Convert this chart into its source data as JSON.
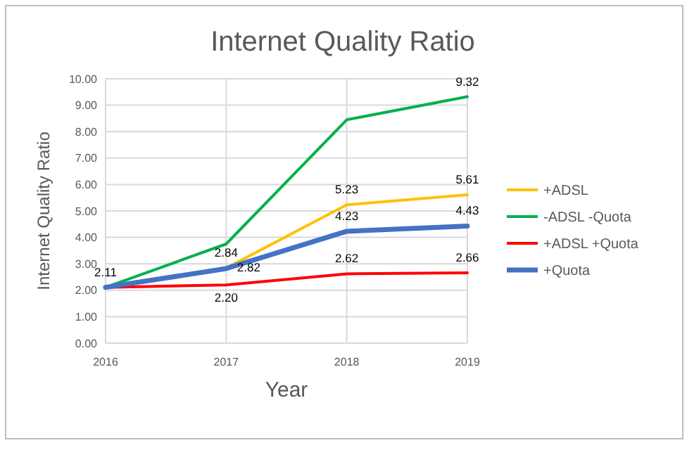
{
  "chart_data": {
    "type": "line",
    "title": "Internet Quality Ratio",
    "xlabel": "Year",
    "ylabel": "Internet Quality Ratio",
    "x": [
      2016,
      2017,
      2018,
      2019
    ],
    "xlim": [
      2016,
      2019
    ],
    "xticks": [
      2016,
      2017,
      2018,
      2019
    ],
    "ylim": [
      0,
      10
    ],
    "yticks": [
      {
        "value": 0,
        "label": "0.00"
      },
      {
        "value": 1,
        "label": "1.00"
      },
      {
        "value": 2,
        "label": "2.00"
      },
      {
        "value": 3,
        "label": "3.00"
      },
      {
        "value": 4,
        "label": "4.00"
      },
      {
        "value": 5,
        "label": "5.00"
      },
      {
        "value": 6,
        "label": "6.00"
      },
      {
        "value": 7,
        "label": "7.00"
      },
      {
        "value": 8,
        "label": "8.00"
      },
      {
        "value": 9,
        "label": "9.00"
      },
      {
        "value": 10,
        "label": "10.00"
      }
    ],
    "grid": true,
    "legend": "right",
    "marker": "none",
    "series": [
      {
        "name": "+ADSL",
        "color": "#ffc000",
        "values": [
          2.11,
          2.84,
          5.23,
          5.61
        ],
        "value_labels": [
          null,
          "2.84",
          "5.23",
          "5.61"
        ]
      },
      {
        "name": "-ADSL -Quota",
        "color": "#00b050",
        "values": [
          2.11,
          3.75,
          8.45,
          9.32
        ],
        "value_labels": [
          null,
          null,
          null,
          "9.32"
        ]
      },
      {
        "name": "+ADSL +Quota",
        "color": "#ff0000",
        "values": [
          2.11,
          2.2,
          2.62,
          2.66
        ],
        "value_labels": [
          "2.11",
          "2.20",
          "2.62",
          "2.66"
        ]
      },
      {
        "name": "+Quota",
        "color": "#4472c4",
        "values": [
          2.11,
          2.82,
          4.23,
          4.43
        ],
        "value_labels": [
          null,
          "2.82",
          "4.23",
          "4.43"
        ]
      }
    ]
  }
}
